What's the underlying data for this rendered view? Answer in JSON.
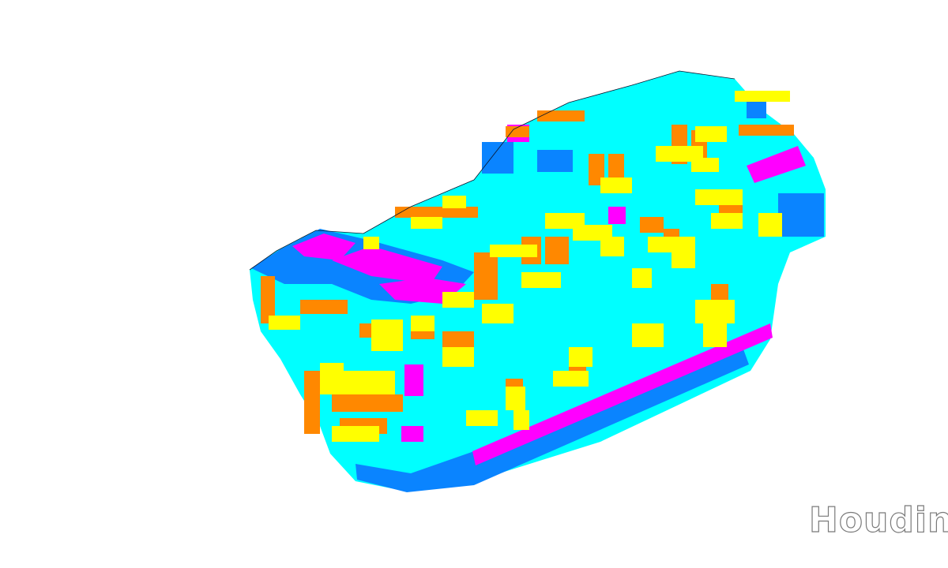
{
  "viewport": {
    "background": "#ffffff",
    "watermark": "Houdini"
  },
  "palette": {
    "cyan": "#00ffff",
    "blue": "#0a84ff",
    "magenta": "#ff00ff",
    "orange": "#ff8800",
    "yellow": "#ffff00",
    "ink": "#0b1730"
  }
}
